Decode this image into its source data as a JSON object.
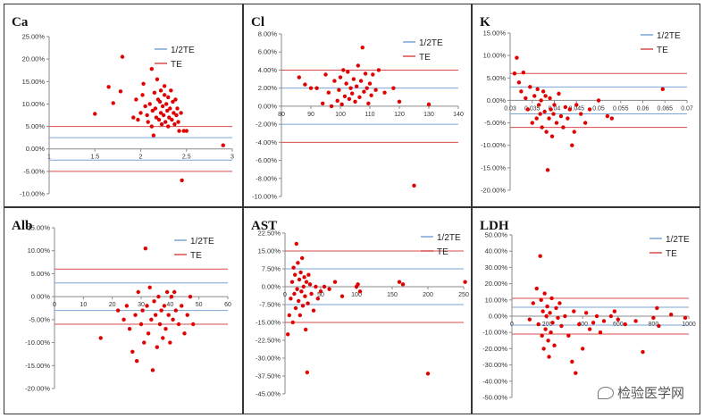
{
  "legend_labels": {
    "half": "1/2TE",
    "full": "TE"
  },
  "colors": {
    "dot": "#e00000",
    "te": "#d94b4b",
    "halfte": "#7aa6d6",
    "axis": "#8a8a8a",
    "text": "#333333"
  },
  "watermark": {
    "text": "检验医学网",
    "icon": "wechat-icon"
  },
  "chart_data": [
    {
      "type": "scatter",
      "title": "Ca",
      "xlim": [
        1,
        3
      ],
      "ylim": [
        -10,
        25
      ],
      "xticks": [
        1,
        1.5,
        2,
        2.5,
        3
      ],
      "xtick_labels": [
        "1",
        "1.5",
        "2",
        "2.5",
        "3"
      ],
      "yticks": [
        -10,
        -5,
        0,
        5,
        10,
        15,
        20,
        25
      ],
      "ytick_labels": [
        "-10.00%",
        "-5.00%",
        "0.00%",
        "5.00%",
        "10.00%",
        "15.00%",
        "20.00%",
        "25.00%"
      ],
      "te": 5,
      "half_te": 2.5,
      "points": [
        [
          1.5,
          7.8
        ],
        [
          1.65,
          13.8
        ],
        [
          1.7,
          10.2
        ],
        [
          1.78,
          12.8
        ],
        [
          1.8,
          20.5
        ],
        [
          1.92,
          7
        ],
        [
          1.95,
          11
        ],
        [
          1.97,
          6.5
        ],
        [
          2,
          8
        ],
        [
          2.02,
          12
        ],
        [
          2.03,
          14.5
        ],
        [
          2.05,
          9.5
        ],
        [
          2.07,
          7.5
        ],
        [
          2.08,
          6
        ],
        [
          2.1,
          10
        ],
        [
          2.12,
          17.8
        ],
        [
          2.12,
          5
        ],
        [
          2.13,
          8.5
        ],
        [
          2.14,
          3
        ],
        [
          2.15,
          12.5
        ],
        [
          2.16,
          9
        ],
        [
          2.17,
          7
        ],
        [
          2.18,
          15.5
        ],
        [
          2.19,
          11
        ],
        [
          2.2,
          6.5
        ],
        [
          2.21,
          10.5
        ],
        [
          2.22,
          8
        ],
        [
          2.22,
          13
        ],
        [
          2.23,
          5.5
        ],
        [
          2.24,
          9.5
        ],
        [
          2.25,
          7.5
        ],
        [
          2.26,
          12
        ],
        [
          2.26,
          14
        ],
        [
          2.27,
          6
        ],
        [
          2.28,
          10
        ],
        [
          2.29,
          8.5
        ],
        [
          2.3,
          11.5
        ],
        [
          2.3,
          5
        ],
        [
          2.31,
          7
        ],
        [
          2.32,
          9
        ],
        [
          2.33,
          13
        ],
        [
          2.34,
          6.5
        ],
        [
          2.35,
          10.5
        ],
        [
          2.36,
          8
        ],
        [
          2.37,
          5.5
        ],
        [
          2.38,
          11
        ],
        [
          2.39,
          7.5
        ],
        [
          2.4,
          9
        ],
        [
          2.41,
          6
        ],
        [
          2.42,
          4
        ],
        [
          2.44,
          8
        ],
        [
          2.45,
          -7
        ],
        [
          2.47,
          4
        ],
        [
          2.5,
          4
        ],
        [
          2.9,
          0.8
        ]
      ]
    },
    {
      "type": "scatter",
      "title": "Cl",
      "xlim": [
        80,
        140
      ],
      "ylim": [
        -10,
        8
      ],
      "xticks": [
        80,
        90,
        100,
        110,
        120,
        130,
        140
      ],
      "xtick_labels": [
        "80",
        "90",
        "100",
        "110",
        "120",
        "130",
        "140"
      ],
      "yticks": [
        -10,
        -8,
        -6,
        -4,
        -2,
        0,
        2,
        4,
        6,
        8
      ],
      "ytick_labels": [
        "-10.00%",
        "-8.00%",
        "-6.00%",
        "-4.00%",
        "-2.00%",
        "0.00%",
        "2.00%",
        "4.00%",
        "6.00%",
        "8.00%"
      ],
      "te": 4,
      "half_te": 2,
      "points": [
        [
          86,
          3.2
        ],
        [
          88,
          2.4
        ],
        [
          90,
          2
        ],
        [
          92,
          2
        ],
        [
          94,
          0.3
        ],
        [
          95,
          3.5
        ],
        [
          96,
          1.5
        ],
        [
          97,
          0
        ],
        [
          98,
          2.8
        ],
        [
          99,
          0.6
        ],
        [
          99.5,
          1.8
        ],
        [
          100,
          3.2
        ],
        [
          100.5,
          0.2
        ],
        [
          101,
          4
        ],
        [
          101.5,
          1.1
        ],
        [
          102,
          2.5
        ],
        [
          102.5,
          3.8
        ],
        [
          103,
          0.8
        ],
        [
          103.5,
          2
        ],
        [
          104,
          1.4
        ],
        [
          104.5,
          3
        ],
        [
          105,
          0.5
        ],
        [
          105.5,
          2.2
        ],
        [
          106,
          4.5
        ],
        [
          106.5,
          1
        ],
        [
          107,
          2.8
        ],
        [
          107.5,
          6.5
        ],
        [
          108,
          1.6
        ],
        [
          108.5,
          3.6
        ],
        [
          109,
          2
        ],
        [
          109.5,
          0.3
        ],
        [
          110,
          2.5
        ],
        [
          110.5,
          1.2
        ],
        [
          111,
          3.5
        ],
        [
          112,
          1.8
        ],
        [
          113,
          4
        ],
        [
          115,
          1.5
        ],
        [
          118,
          2
        ],
        [
          120,
          0.5
        ],
        [
          125,
          -8.8
        ],
        [
          130,
          0.2
        ]
      ]
    },
    {
      "type": "scatter",
      "title": "K",
      "xlim": [
        0.03,
        0.07
      ],
      "ylim": [
        -20,
        15
      ],
      "xticks": [
        0.03,
        0.035,
        0.04,
        0.045,
        0.05,
        0.055,
        0.06,
        0.065,
        0.07
      ],
      "xtick_labels": [
        "0.03",
        "0.035",
        "0.04",
        "0.045",
        "0.05",
        "0.055",
        "0.06",
        "0.065",
        "0.07"
      ],
      "yticks": [
        -20,
        -15,
        -10,
        -5,
        0,
        5,
        10,
        15
      ],
      "ytick_labels": [
        "-20.00%",
        "-15.00%",
        "-10.00%",
        "-5.00%",
        "0.00%",
        "5.00%",
        "10.00%",
        "15.00%"
      ],
      "te": 6,
      "half_te": 3,
      "points": [
        [
          0.031,
          6
        ],
        [
          0.0315,
          9.5
        ],
        [
          0.032,
          4
        ],
        [
          0.0325,
          2
        ],
        [
          0.033,
          6.2
        ],
        [
          0.0335,
          0.5
        ],
        [
          0.034,
          -2
        ],
        [
          0.0345,
          3
        ],
        [
          0.035,
          -5
        ],
        [
          0.0355,
          1
        ],
        [
          0.036,
          -4
        ],
        [
          0.0362,
          2.5
        ],
        [
          0.0365,
          -1
        ],
        [
          0.0368,
          -3
        ],
        [
          0.037,
          0
        ],
        [
          0.0372,
          -6
        ],
        [
          0.0375,
          2
        ],
        [
          0.0378,
          -2.5
        ],
        [
          0.038,
          1
        ],
        [
          0.0382,
          -7
        ],
        [
          0.0385,
          -15.5
        ],
        [
          0.0388,
          -4
        ],
        [
          0.039,
          0.5
        ],
        [
          0.0392,
          -2
        ],
        [
          0.0395,
          -8
        ],
        [
          0.0398,
          -3
        ],
        [
          0.04,
          -1
        ],
        [
          0.0405,
          -5
        ],
        [
          0.041,
          1.5
        ],
        [
          0.0415,
          -3.5
        ],
        [
          0.042,
          -6
        ],
        [
          0.0425,
          -1.5
        ],
        [
          0.043,
          -4
        ],
        [
          0.0435,
          -2
        ],
        [
          0.044,
          -10
        ],
        [
          0.0445,
          -7
        ],
        [
          0.045,
          -1
        ],
        [
          0.046,
          -3
        ],
        [
          0.047,
          -5
        ],
        [
          0.048,
          -2
        ],
        [
          0.05,
          0
        ],
        [
          0.052,
          -3.5
        ],
        [
          0.053,
          -4
        ],
        [
          0.0645,
          2.5
        ]
      ]
    },
    {
      "type": "scatter",
      "title": "Alb",
      "xlim": [
        0,
        60
      ],
      "ylim": [
        -20,
        15
      ],
      "xticks": [
        0,
        10,
        20,
        30,
        40,
        50,
        60
      ],
      "xtick_labels": [
        "0",
        "10",
        "20",
        "30",
        "40",
        "50",
        "60"
      ],
      "yticks": [
        -20,
        -15,
        -10,
        -5,
        0,
        5,
        10,
        15
      ],
      "ytick_labels": [
        "-20.00%",
        "-15.00%",
        "-10.00%",
        "-5.00%",
        "0.00%",
        "5.00%",
        "10.00%",
        "15.00%"
      ],
      "te": 6,
      "half_te": 3,
      "points": [
        [
          16,
          -9
        ],
        [
          22,
          -3
        ],
        [
          24,
          -5
        ],
        [
          25,
          -2
        ],
        [
          26,
          -7
        ],
        [
          27,
          -12
        ],
        [
          28,
          -4
        ],
        [
          28.5,
          -14
        ],
        [
          29,
          1
        ],
        [
          30,
          -6
        ],
        [
          30.5,
          -3
        ],
        [
          31,
          -10
        ],
        [
          31.5,
          10.5
        ],
        [
          32,
          -2
        ],
        [
          32.5,
          -8
        ],
        [
          33,
          2
        ],
        [
          33.5,
          -5
        ],
        [
          34,
          -16
        ],
        [
          34.5,
          -1
        ],
        [
          35,
          -4
        ],
        [
          35.5,
          -11
        ],
        [
          36,
          0
        ],
        [
          36.5,
          -6
        ],
        [
          37,
          -3
        ],
        [
          37.5,
          -9
        ],
        [
          38,
          -2
        ],
        [
          38.5,
          -7
        ],
        [
          39,
          1
        ],
        [
          39.5,
          -4
        ],
        [
          40,
          -10
        ],
        [
          40.5,
          0
        ],
        [
          41,
          -5
        ],
        [
          41.5,
          1
        ],
        [
          42,
          -3
        ],
        [
          43,
          -6
        ],
        [
          44,
          -2
        ],
        [
          45,
          -8
        ],
        [
          46,
          -4
        ],
        [
          47,
          0
        ],
        [
          48,
          -6
        ]
      ]
    },
    {
      "type": "scatter",
      "title": "AST",
      "xlim": [
        0,
        250
      ],
      "ylim": [
        -45,
        22.5
      ],
      "xticks": [
        0,
        50,
        100,
        150,
        200,
        250
      ],
      "xtick_labels": [
        "0",
        "50",
        "100",
        "150",
        "200",
        "250"
      ],
      "yticks": [
        -45,
        -37.5,
        -30,
        -22.5,
        -15,
        -7.5,
        0,
        7.5,
        15,
        22.5
      ],
      "ytick_labels": [
        "-45.00%",
        "-37.50%",
        "-30.00%",
        "-22.50%",
        "-15.00%",
        "-7.50%",
        "0.00%",
        "7.50%",
        "15.00%",
        "22.50%"
      ],
      "te": 15,
      "half_te": 7.5,
      "points": [
        [
          4,
          -20
        ],
        [
          6,
          -12
        ],
        [
          8,
          -5
        ],
        [
          10,
          2
        ],
        [
          11,
          -15
        ],
        [
          12,
          8
        ],
        [
          13,
          -3
        ],
        [
          14,
          5
        ],
        [
          15,
          -9
        ],
        [
          16,
          18
        ],
        [
          17,
          -1
        ],
        [
          18,
          10
        ],
        [
          19,
          -6
        ],
        [
          20,
          3
        ],
        [
          21,
          -12
        ],
        [
          22,
          6
        ],
        [
          23,
          -2
        ],
        [
          24,
          12
        ],
        [
          25,
          -8
        ],
        [
          26,
          0
        ],
        [
          27,
          4
        ],
        [
          28,
          -4
        ],
        [
          29,
          -18
        ],
        [
          30,
          2
        ],
        [
          31,
          -36
        ],
        [
          32,
          -7
        ],
        [
          33,
          5
        ],
        [
          35,
          1
        ],
        [
          37,
          -3
        ],
        [
          40,
          -10
        ],
        [
          43,
          0
        ],
        [
          46,
          -5
        ],
        [
          50,
          -2
        ],
        [
          55,
          0
        ],
        [
          62,
          -1
        ],
        [
          70,
          2
        ],
        [
          80,
          -4
        ],
        [
          100,
          0
        ],
        [
          102,
          1
        ],
        [
          105,
          -2
        ],
        [
          160,
          2
        ],
        [
          165,
          1
        ],
        [
          200,
          -36.5
        ],
        [
          252,
          2
        ]
      ]
    },
    {
      "type": "scatter",
      "title": "LDH",
      "xlim": [
        0,
        1000
      ],
      "ylim": [
        -50,
        50
      ],
      "xticks": [
        0,
        200,
        400,
        600,
        800,
        1000
      ],
      "xtick_labels": [
        "0",
        "200",
        "400",
        "600",
        "800",
        "1000"
      ],
      "yticks": [
        -50,
        -40,
        -30,
        -20,
        -10,
        0,
        10,
        20,
        30,
        40,
        50
      ],
      "ytick_labels": [
        "-50.00%",
        "-40.00%",
        "-30.00%",
        "-20.00%",
        "-10.00%",
        "0.00%",
        "10.00%",
        "20.00%",
        "30.00%",
        "40.00%",
        "50.00%"
      ],
      "te": 11,
      "half_te": 5.5,
      "points": [
        [
          100,
          -2
        ],
        [
          120,
          8
        ],
        [
          140,
          17
        ],
        [
          150,
          -5
        ],
        [
          160,
          37
        ],
        [
          165,
          10
        ],
        [
          170,
          -12
        ],
        [
          175,
          3
        ],
        [
          180,
          -20
        ],
        [
          185,
          14
        ],
        [
          190,
          -8
        ],
        [
          195,
          0
        ],
        [
          200,
          6
        ],
        [
          205,
          -15
        ],
        [
          210,
          -25
        ],
        [
          215,
          2
        ],
        [
          220,
          -10
        ],
        [
          225,
          11
        ],
        [
          230,
          -4
        ],
        [
          240,
          -18
        ],
        [
          250,
          5
        ],
        [
          260,
          -1
        ],
        [
          270,
          8
        ],
        [
          280,
          -6
        ],
        [
          300,
          0
        ],
        [
          320,
          -12
        ],
        [
          340,
          -28
        ],
        [
          350,
          3
        ],
        [
          360,
          -35
        ],
        [
          380,
          -5
        ],
        [
          400,
          -20
        ],
        [
          420,
          2
        ],
        [
          440,
          -8
        ],
        [
          460,
          -4
        ],
        [
          480,
          0
        ],
        [
          500,
          -10
        ],
        [
          520,
          -3
        ],
        [
          560,
          0
        ],
        [
          580,
          3
        ],
        [
          600,
          -2
        ],
        [
          640,
          -5
        ],
        [
          700,
          -3
        ],
        [
          740,
          -22
        ],
        [
          800,
          -1
        ],
        [
          820,
          5
        ],
        [
          830,
          -6
        ],
        [
          900,
          1
        ],
        [
          980,
          -1
        ]
      ]
    }
  ]
}
